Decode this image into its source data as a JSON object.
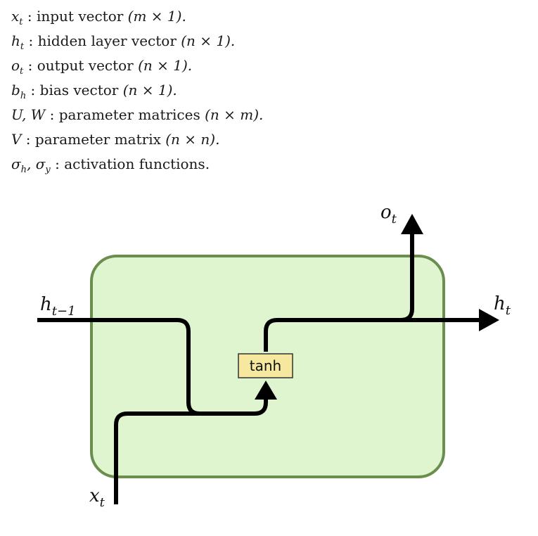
{
  "legend": [
    {
      "sym": "x",
      "sub": "t",
      "desc": "input vector",
      "dim": "(m × 1)."
    },
    {
      "sym": "h",
      "sub": "t",
      "desc": "hidden layer vector",
      "dim": "(n × 1)."
    },
    {
      "sym": "o",
      "sub": "t",
      "desc": "output vector",
      "dim": "(n × 1)."
    },
    {
      "sym": "b",
      "sub": "h",
      "desc": "bias vector",
      "dim": "(n × 1)."
    },
    {
      "sym": "U, W",
      "sub": "",
      "desc": "parameter matrices",
      "dim": "(n × m)."
    },
    {
      "sym": "V",
      "sub": "",
      "desc": "parameter matrix",
      "dim": "(n × n)."
    },
    {
      "sym": "σ",
      "sub": "h",
      "sym2": ", σ",
      "sub2": "y",
      "desc": "activation functions.",
      "dim": ""
    }
  ],
  "diagram": {
    "cell_fill": "#dff5cf",
    "cell_stroke": "#6b8e4e",
    "tanh_fill": "#f7e8a0",
    "line_color": "#000000",
    "tanh_label": "tanh",
    "labels": {
      "h_prev": {
        "base": "h",
        "sub": "t−1"
      },
      "h_out": {
        "base": "h",
        "sub": "t"
      },
      "o_out": {
        "base": "o",
        "sub": "t"
      },
      "x_in": {
        "base": "x",
        "sub": "t"
      }
    }
  }
}
